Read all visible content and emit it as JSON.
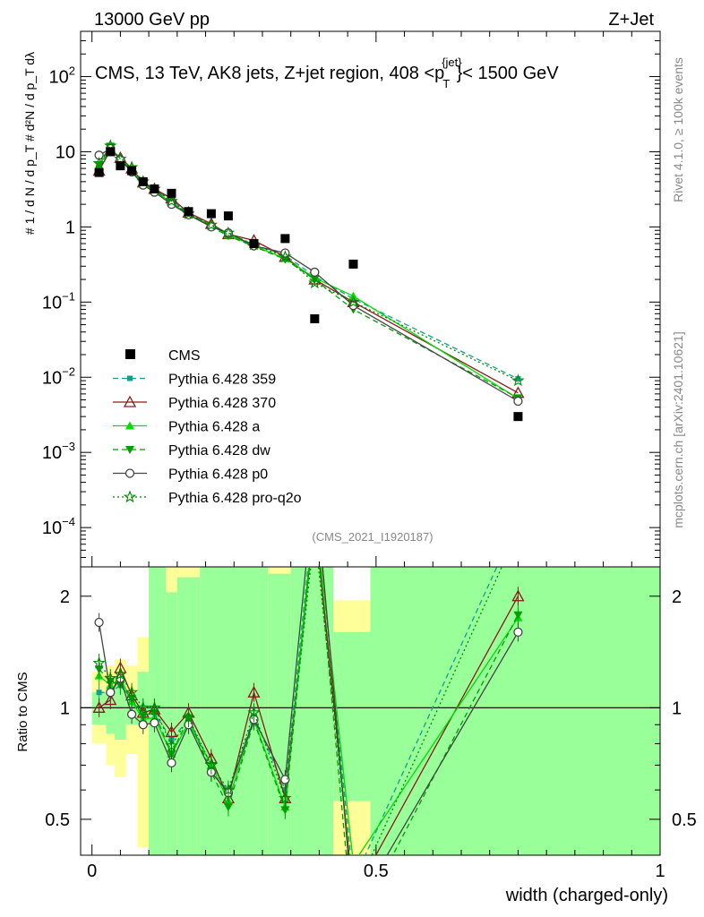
{
  "header": {
    "left": "13000 GeV pp",
    "right": "Z+Jet"
  },
  "side_labels": {
    "rivet": "Rivet 4.1.0, ≥ 100k events",
    "mcplots": "mcplots.cern.ch [arXiv:2401.10621]"
  },
  "colors": {
    "CMS": "#000000",
    "p359": "#10a090",
    "p370": "#8b1a1a",
    "pa": "#00dd00",
    "pdw": "#00a000",
    "pp0": "#444444",
    "pq2o": "#008800",
    "band_green": "#99ff99",
    "band_yellow": "#ffff99"
  },
  "chart_data": [
    {
      "type": "line",
      "panel": "main",
      "title_prefix": "CMS, 13 TeV, AK8 jets, Z+jet region, 408 <p",
      "title_sup": "{jet}",
      "title_sub": "T",
      "title_suffix": "}< 1500 GeV",
      "ylabel": "# 1 / d N / d p_T # d²N / d p_T dλ",
      "yscale": "log",
      "ylim": [
        3e-05,
        400
      ],
      "xlim": [
        -0.02,
        1.0
      ],
      "watermark": "(CMS_2021_I1920187)",
      "yticks": [
        {
          "v": 0.0001,
          "base": "10",
          "exp": "−4"
        },
        {
          "v": 0.001,
          "base": "10",
          "exp": "−3"
        },
        {
          "v": 0.01,
          "base": "10",
          "exp": "−2"
        },
        {
          "v": 0.1,
          "base": "10",
          "exp": "−1"
        },
        {
          "v": 1,
          "base": "1",
          "exp": ""
        },
        {
          "v": 10,
          "base": "10",
          "exp": ""
        },
        {
          "v": 100,
          "base": "10",
          "exp": "2"
        }
      ],
      "legend": [
        {
          "key": "CMS",
          "label": "CMS"
        },
        {
          "key": "p359",
          "label": "Pythia 6.428 359"
        },
        {
          "key": "p370",
          "label": "Pythia 6.428 370"
        },
        {
          "key": "pa",
          "label": "Pythia 6.428 a"
        },
        {
          "key": "pdw",
          "label": "Pythia 6.428 dw"
        },
        {
          "key": "pp0",
          "label": "Pythia 6.428 p0"
        },
        {
          "key": "pq2o",
          "label": "Pythia 6.428 pro-q2o"
        }
      ],
      "x": [
        0.0125,
        0.0325,
        0.05,
        0.07,
        0.09,
        0.11,
        0.14,
        0.17,
        0.21,
        0.24,
        0.285,
        0.34,
        0.392,
        0.46,
        0.75
      ],
      "cms": [
        5.3,
        10.0,
        6.5,
        5.6,
        4.0,
        3.2,
        2.8,
        1.6,
        1.5,
        1.4,
        0.6,
        0.7,
        0.06,
        0.32,
        0.003
      ],
      "series": [
        {
          "key": "p359",
          "name": "Pythia 6.428 359",
          "style": "dash",
          "marker": "square",
          "values": [
            6.2,
            11.0,
            8.0,
            5.8,
            3.8,
            3.1,
            2.3,
            1.5,
            1.05,
            0.82,
            0.58,
            0.42,
            0.22,
            0.11,
            0.0095
          ]
        },
        {
          "key": "p370",
          "name": "Pythia 6.428 370",
          "style": "solid",
          "marker": "triangle-open",
          "values": [
            5.6,
            10.5,
            8.3,
            6.0,
            3.9,
            3.2,
            2.4,
            1.55,
            1.1,
            0.8,
            0.66,
            0.4,
            0.2,
            0.1,
            0.0062
          ]
        },
        {
          "key": "pa",
          "name": "Pythia 6.428 a",
          "style": "solid",
          "marker": "triangle",
          "values": [
            6.5,
            11.5,
            7.8,
            5.8,
            3.7,
            3.0,
            2.1,
            1.45,
            1.05,
            0.78,
            0.56,
            0.38,
            0.21,
            0.12,
            0.0052
          ]
        },
        {
          "key": "pdw",
          "name": "Pythia 6.428 dw",
          "style": "dash",
          "marker": "triangle-down",
          "values": [
            6.7,
            11.8,
            7.5,
            5.9,
            3.8,
            3.1,
            2.1,
            1.5,
            1.0,
            0.76,
            0.55,
            0.37,
            0.2,
            0.08,
            0.0053
          ]
        },
        {
          "key": "pp0",
          "name": "Pythia 6.428 p0",
          "style": "solid",
          "marker": "circle-open",
          "values": [
            9.0,
            11.0,
            7.8,
            5.4,
            3.6,
            2.9,
            2.0,
            1.45,
            1.0,
            0.83,
            0.56,
            0.45,
            0.25,
            0.09,
            0.0048
          ]
        },
        {
          "key": "pq2o",
          "name": "Pythia 6.428 pro-q2o",
          "style": "dot",
          "marker": "star",
          "values": [
            7.0,
            12.0,
            8.0,
            6.2,
            4.0,
            3.2,
            2.2,
            1.5,
            1.06,
            0.83,
            0.58,
            0.4,
            0.18,
            0.1,
            0.009
          ]
        }
      ]
    },
    {
      "type": "line",
      "panel": "ratio",
      "ylabel": "Ratio to CMS",
      "xlabel": "width (charged-only)",
      "yscale": "log",
      "ylim": [
        0.4,
        2.4
      ],
      "reference": 1.0,
      "yticks": [
        "0.5",
        "1",
        "2"
      ],
      "xticks": [
        "0",
        "0.5",
        "1"
      ],
      "x": [
        0.0125,
        0.0325,
        0.05,
        0.07,
        0.09,
        0.11,
        0.14,
        0.17,
        0.21,
        0.24,
        0.285,
        0.34,
        0.392,
        0.46,
        0.75
      ],
      "bands": [
        {
          "x0": 0.0,
          "x1": 0.025,
          "green": [
            0.9,
            1.1
          ],
          "yellow": [
            0.8,
            1.25
          ]
        },
        {
          "x0": 0.025,
          "x1": 0.04,
          "green": [
            0.85,
            1.15
          ],
          "yellow": [
            0.7,
            1.3
          ]
        },
        {
          "x0": 0.04,
          "x1": 0.06,
          "green": [
            0.82,
            1.2
          ],
          "yellow": [
            0.65,
            1.35
          ]
        },
        {
          "x0": 0.06,
          "x1": 0.08,
          "green": [
            0.9,
            1.1
          ],
          "yellow": [
            0.75,
            1.3
          ]
        },
        {
          "x0": 0.08,
          "x1": 0.1,
          "green": [
            0.9,
            1.25
          ],
          "yellow": [
            0.42,
            1.55
          ]
        },
        {
          "x0": 0.1,
          "x1": 0.13,
          "green": [
            0.4,
            2.4
          ],
          "yellow": [
            0.4,
            2.4
          ]
        },
        {
          "x0": 0.13,
          "x1": 0.15,
          "green": [
            0.4,
            2.05
          ],
          "yellow": [
            0.4,
            2.4
          ]
        },
        {
          "x0": 0.15,
          "x1": 0.19,
          "green": [
            0.4,
            2.25
          ],
          "yellow": [
            0.4,
            2.4
          ]
        },
        {
          "x0": 0.19,
          "x1": 0.31,
          "green": [
            0.4,
            2.4
          ],
          "yellow": [
            0.4,
            2.4
          ]
        },
        {
          "x0": 0.31,
          "x1": 0.35,
          "green": [
            0.4,
            2.3
          ],
          "yellow": [
            0.4,
            2.4
          ]
        },
        {
          "x0": 0.35,
          "x1": 0.425,
          "green": [
            0.4,
            2.4
          ],
          "yellow": [
            0.4,
            2.4
          ]
        },
        {
          "x0": 0.425,
          "x1": 0.49,
          "green": [
            0.56,
            1.6
          ],
          "yellow": [
            0.4,
            1.95
          ]
        },
        {
          "x0": 0.49,
          "x1": 1.0,
          "green": [
            0.4,
            2.4
          ],
          "yellow": [
            0.4,
            2.4
          ]
        }
      ],
      "series": [
        {
          "key": "p359",
          "values": [
            1.1,
            1.1,
            1.15,
            1.05,
            0.95,
            0.97,
            0.82,
            0.93,
            0.7,
            0.59,
            0.95,
            0.6,
            3.6,
            0.34,
            3.2
          ]
        },
        {
          "key": "p370",
          "values": [
            1.0,
            1.05,
            1.28,
            1.08,
            0.97,
            0.99,
            0.86,
            0.97,
            0.73,
            0.57,
            1.1,
            0.57,
            3.3,
            0.31,
            2.0
          ]
        },
        {
          "key": "pa",
          "values": [
            1.22,
            1.15,
            1.2,
            1.04,
            0.93,
            0.94,
            0.75,
            0.91,
            0.7,
            0.56,
            0.93,
            0.54,
            3.5,
            0.38,
            1.75
          ]
        },
        {
          "key": "pdw",
          "values": [
            1.27,
            1.18,
            1.15,
            1.06,
            0.95,
            0.97,
            0.75,
            0.94,
            0.67,
            0.54,
            0.92,
            0.53,
            3.3,
            0.25,
            1.78
          ]
        },
        {
          "key": "pp0",
          "values": [
            1.7,
            1.1,
            1.2,
            0.96,
            0.9,
            0.91,
            0.71,
            0.9,
            0.67,
            0.59,
            0.93,
            0.64,
            4.2,
            0.28,
            1.6
          ]
        },
        {
          "key": "pq2o",
          "values": [
            1.32,
            1.2,
            1.23,
            1.1,
            1.0,
            1.0,
            0.79,
            0.94,
            0.7,
            0.6,
            0.97,
            0.57,
            3.0,
            0.31,
            3.0
          ]
        }
      ]
    }
  ]
}
